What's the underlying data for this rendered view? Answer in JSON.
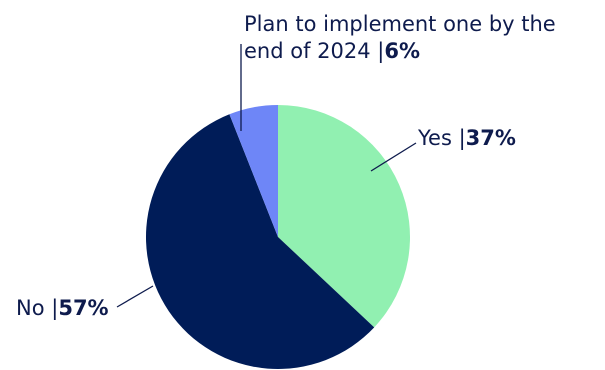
{
  "chart_data": {
    "type": "pie",
    "slices": [
      {
        "name": "Yes",
        "value": 37,
        "display": "37%",
        "color": "#91f0b1"
      },
      {
        "name": "No",
        "value": 57,
        "display": "57%",
        "color": "#001c58"
      },
      {
        "name": "Plan to implement one by the end of 2024",
        "value": 6,
        "display": "6%",
        "color": "#6e86f7"
      }
    ],
    "labels": {
      "yes": {
        "name": "Yes",
        "sep": " |",
        "value": "37%"
      },
      "no": {
        "name": "No",
        "sep": " |",
        "value": "57%"
      },
      "plan": {
        "name_line1": "Plan to implement one by the",
        "name_line2": "end of 2024",
        "sep": " |",
        "value": "6%"
      }
    },
    "leader_color": "#0e1b4d"
  }
}
